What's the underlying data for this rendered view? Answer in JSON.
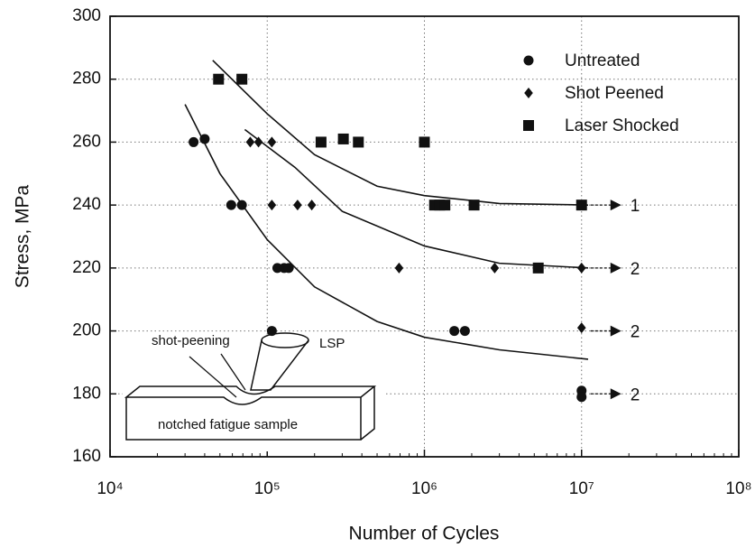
{
  "chart_data": {
    "type": "scatter",
    "log_x": true,
    "grid": true,
    "legend": "upper right",
    "xlabel": "Number of Cycles",
    "ylabel": "Stress, MPa",
    "xlim": [
      10000,
      100000000
    ],
    "ylim": [
      160,
      300
    ],
    "xticks": [
      {
        "value": 10000,
        "label": "10⁴"
      },
      {
        "value": 100000,
        "label": "10⁵"
      },
      {
        "value": 1000000,
        "label": "10⁶"
      },
      {
        "value": 10000000,
        "label": "10⁷"
      },
      {
        "value": 100000000,
        "label": "10⁸"
      }
    ],
    "yticks": [
      160,
      180,
      200,
      220,
      240,
      260,
      280,
      300
    ],
    "series": [
      {
        "name": "Untreated",
        "marker": "circle",
        "color": "#111111",
        "x": [
          34000,
          40000,
          59000,
          69000,
          116000,
          128000,
          137000,
          107000,
          1550000,
          1810000,
          10000000,
          10000000
        ],
        "values": [
          260,
          261,
          240,
          240,
          220,
          220,
          220,
          200,
          200,
          200,
          181,
          179
        ]
      },
      {
        "name": "Shot Peened",
        "marker": "diamond",
        "color": "#111111",
        "x": [
          78000,
          88000,
          107000,
          107000,
          156000,
          192000,
          690000,
          2800000,
          10000000,
          10000000
        ],
        "values": [
          260,
          260,
          260,
          240,
          240,
          240,
          220,
          220,
          220,
          201
        ]
      },
      {
        "name": "Laser Shocked",
        "marker": "square",
        "color": "#111111",
        "x": [
          49000,
          69000,
          220000,
          305000,
          380000,
          1000000,
          1160000,
          1250000,
          1350000,
          2070000,
          5300000,
          10000000
        ],
        "values": [
          280,
          280,
          260,
          261,
          260,
          260,
          240,
          240,
          240,
          240,
          220,
          240
        ]
      }
    ],
    "fit_curves": [
      {
        "x": [
          45000,
          100000,
          200000,
          500000,
          1000000,
          3000000,
          11000000
        ],
        "values": [
          286,
          269,
          256,
          246,
          243,
          240.5,
          240
        ]
      },
      {
        "x": [
          72000,
          150000,
          300000,
          1000000,
          3000000,
          11000000
        ],
        "values": [
          264,
          252,
          238,
          227,
          221.5,
          220
        ]
      },
      {
        "x": [
          30000,
          50000,
          100000,
          200000,
          500000,
          1000000,
          3000000,
          11000000
        ],
        "values": [
          272,
          250,
          229,
          214,
          203,
          198,
          194,
          191
        ]
      }
    ],
    "runouts": [
      {
        "value": 240,
        "label": "1"
      },
      {
        "value": 220,
        "label": "2"
      },
      {
        "value": 200,
        "label": "2"
      },
      {
        "value": 180,
        "label": "2"
      }
    ],
    "inset": {
      "shot_label": "shot-peening",
      "lsp_label": "LSP",
      "sample_label": "notched fatigue sample"
    }
  }
}
